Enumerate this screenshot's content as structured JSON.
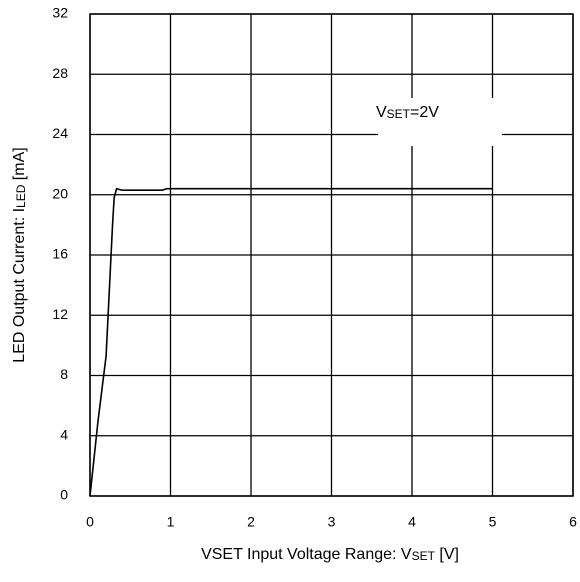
{
  "chart_data": {
    "type": "line",
    "xlabel": {
      "prefix": "VSET Input Voltage Range: V",
      "sub": "SET",
      "suffix": " [V]"
    },
    "ylabel": {
      "prefix": "LED Output Current: I",
      "sub": "LED",
      "suffix": " [mA]"
    },
    "annotation": {
      "prefix": "V",
      "sub": "SET",
      "suffix": "=2V"
    },
    "series": [
      {
        "color": "#000000",
        "x": [
          0,
          0.1,
          0.2,
          0.28,
          0.3,
          0.33,
          0.4,
          0.9,
          0.95,
          5
        ],
        "values": [
          0,
          5,
          9.3,
          18,
          19.8,
          20.4,
          20.3,
          20.3,
          20.4,
          20.4
        ]
      }
    ],
    "xlim": [
      0,
      6
    ],
    "xticks": [
      0,
      1,
      2,
      3,
      4,
      5,
      6
    ],
    "ylim": [
      0,
      32
    ],
    "yticks": [
      0,
      4,
      8,
      12,
      16,
      20,
      24,
      28,
      32
    ],
    "grid": true
  }
}
